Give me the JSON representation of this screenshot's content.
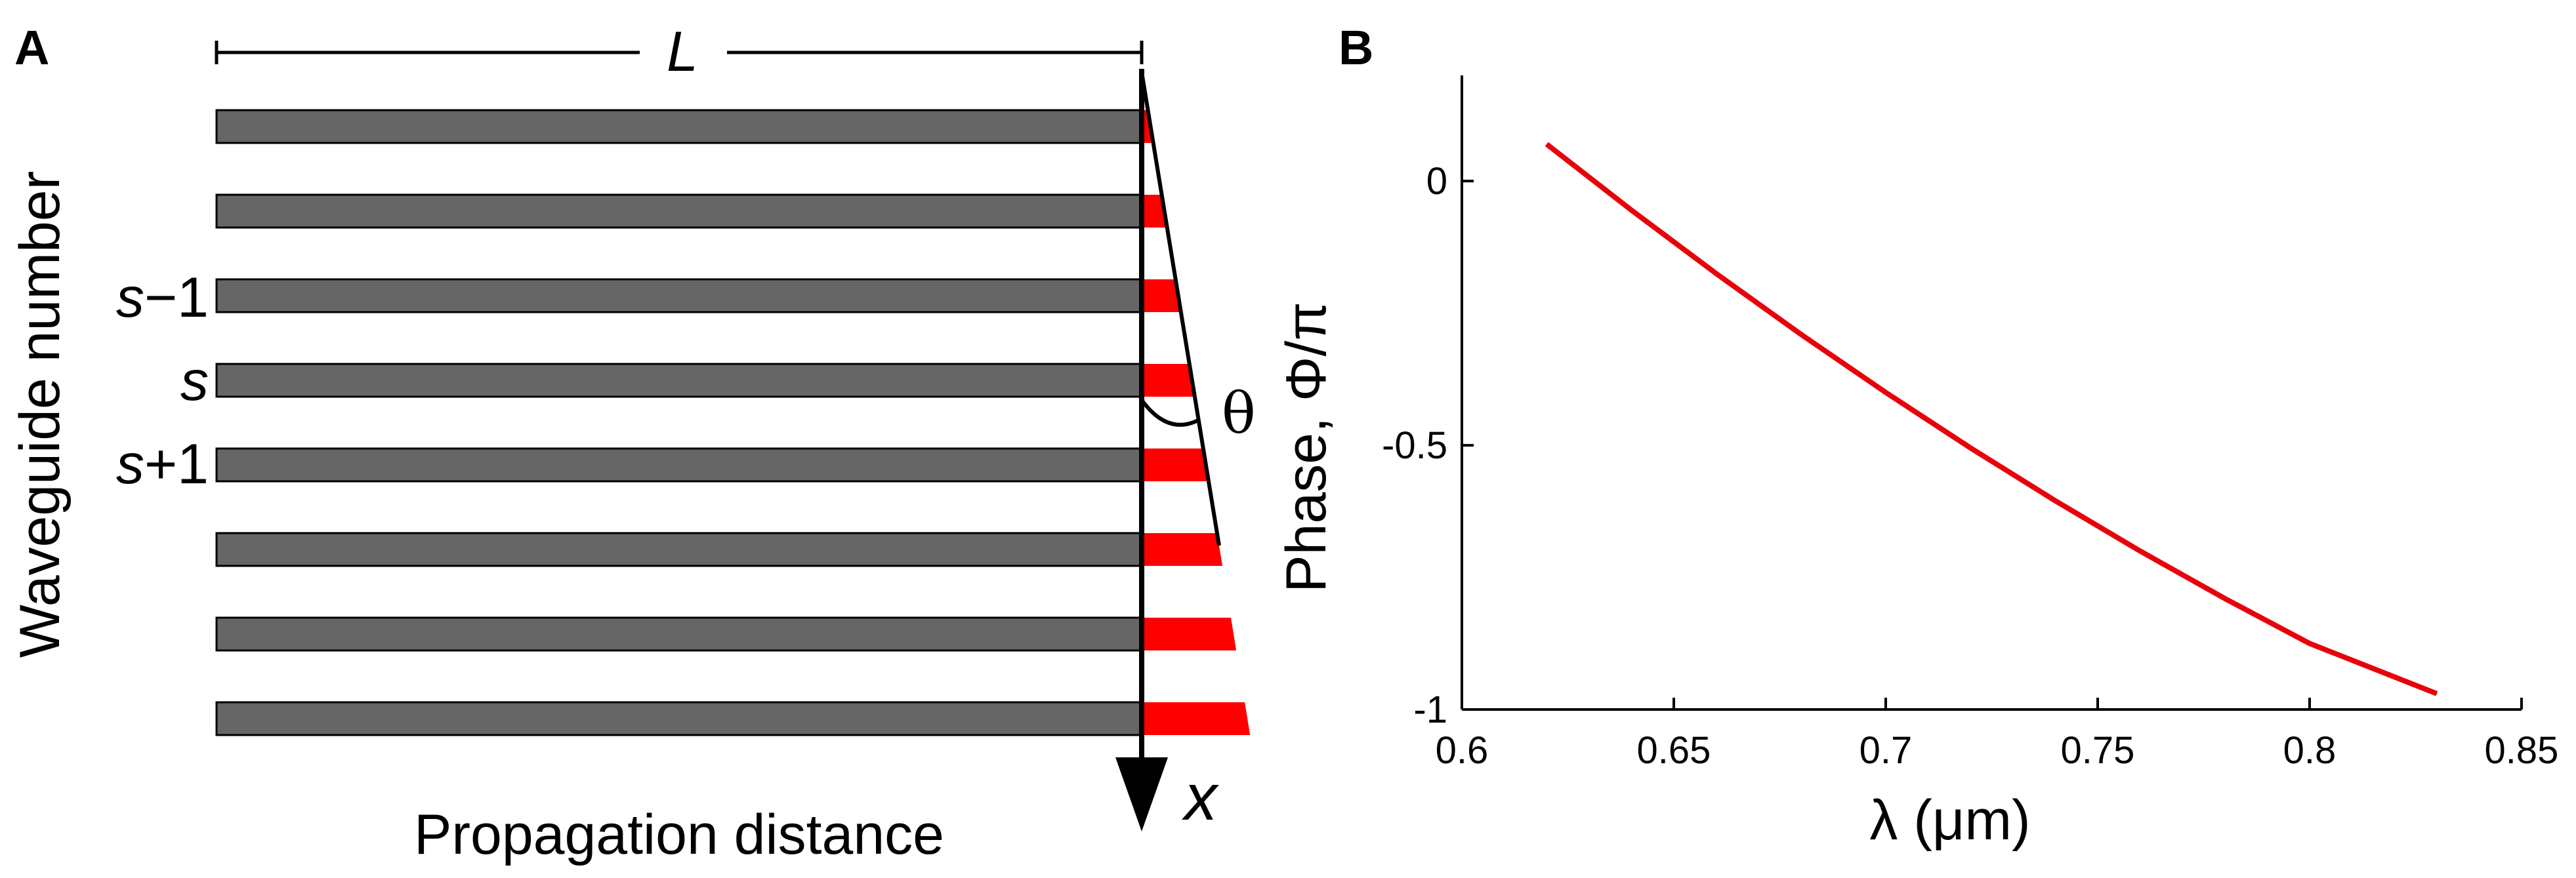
{
  "panels": {
    "a_label": "A",
    "b_label": "B"
  },
  "panel_a": {
    "length_label": "L",
    "y_label": "Waveguide number",
    "x_label": "Propagation distance",
    "x_axis_symbol": "x",
    "angle_label": "θ",
    "row_labels": [
      {
        "row": 2,
        "var": "s",
        "suffix": "−1"
      },
      {
        "row": 3,
        "var": "s",
        "suffix": ""
      },
      {
        "row": 4,
        "var": "s",
        "suffix": "+1"
      }
    ],
    "waveguide_count": 8,
    "colors": {
      "waveguide": "#666666",
      "phase": "#ff0000",
      "outline": "#000000"
    }
  },
  "chart_data": {
    "type": "line",
    "title": "",
    "xlabel": "λ (μm)",
    "ylabel": "Phase, Φ/π",
    "xlim": [
      0.6,
      0.85
    ],
    "ylim": [
      -1,
      0.2
    ],
    "xticks": [
      0.6,
      0.65,
      0.7,
      0.75,
      0.8,
      0.85
    ],
    "xtick_labels": [
      "0.6",
      "0.65",
      "0.7",
      "0.75",
      "0.8",
      "0.85"
    ],
    "yticks": [
      -1,
      -0.5,
      0
    ],
    "ytick_labels": [
      "-1",
      "-0.5",
      "0"
    ],
    "series": [
      {
        "name": "phase",
        "color": "#e8000b",
        "x": [
          0.62,
          0.64,
          0.66,
          0.68,
          0.7,
          0.72,
          0.74,
          0.76,
          0.78,
          0.8,
          0.83
        ],
        "y": [
          0.07,
          -0.055,
          -0.175,
          -0.29,
          -0.4,
          -0.505,
          -0.605,
          -0.7,
          -0.79,
          -0.875,
          -0.97
        ]
      }
    ]
  }
}
